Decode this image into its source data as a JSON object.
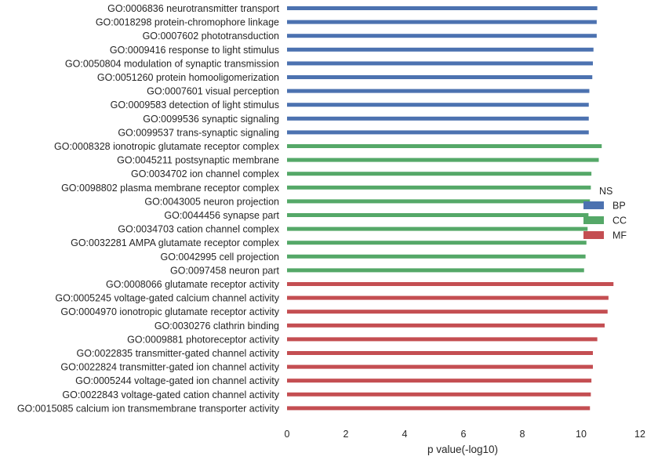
{
  "chart_data": {
    "type": "bar",
    "orientation": "horizontal",
    "xlabel": "p value(-log10)",
    "ylabel": "",
    "title": "",
    "xlim": [
      0,
      12
    ],
    "xticks": [
      0,
      2,
      4,
      6,
      8,
      10,
      12
    ],
    "grid": false,
    "legend": {
      "title": "NS",
      "placement": "right",
      "entries": [
        "BP",
        "CC",
        "MF"
      ]
    },
    "colors": {
      "BP": "#4c72b0",
      "CC": "#55a868",
      "MF": "#c44e52"
    },
    "bars": [
      {
        "label": "GO:0006836 neurotransmitter transport",
        "category": "BP",
        "value": 10.55
      },
      {
        "label": "GO:0018298 protein-chromophore linkage",
        "category": "BP",
        "value": 10.53
      },
      {
        "label": "GO:0007602 phototransduction",
        "category": "BP",
        "value": 10.53
      },
      {
        "label": "GO:0009416 response to light stimulus",
        "category": "BP",
        "value": 10.42
      },
      {
        "label": "GO:0050804 modulation of synaptic transmission",
        "category": "BP",
        "value": 10.4
      },
      {
        "label": "GO:0051260 protein homooligomerization",
        "category": "BP",
        "value": 10.38
      },
      {
        "label": "GO:0007601 visual perception",
        "category": "BP",
        "value": 10.28
      },
      {
        "label": "GO:0009583 detection of light stimulus",
        "category": "BP",
        "value": 10.26
      },
      {
        "label": "GO:0099536 synaptic signaling",
        "category": "BP",
        "value": 10.26
      },
      {
        "label": "GO:0099537 trans-synaptic signaling",
        "category": "BP",
        "value": 10.26
      },
      {
        "label": "GO:0008328 ionotropic glutamate receptor complex",
        "category": "CC",
        "value": 10.7
      },
      {
        "label": "GO:0045211 postsynaptic membrane",
        "category": "CC",
        "value": 10.6
      },
      {
        "label": "GO:0034702 ion channel complex",
        "category": "CC",
        "value": 10.35
      },
      {
        "label": "GO:0098802 plasma membrane receptor complex",
        "category": "CC",
        "value": 10.33
      },
      {
        "label": "GO:0043005 neuron projection",
        "category": "CC",
        "value": 10.3
      },
      {
        "label": "GO:0044456 synapse part",
        "category": "CC",
        "value": 10.25
      },
      {
        "label": "GO:0034703 cation channel complex",
        "category": "CC",
        "value": 10.22
      },
      {
        "label": "GO:0032281 AMPA glutamate receptor complex",
        "category": "CC",
        "value": 10.18
      },
      {
        "label": "GO:0042995 cell projection",
        "category": "CC",
        "value": 10.15
      },
      {
        "label": "GO:0097458 neuron part",
        "category": "CC",
        "value": 10.1
      },
      {
        "label": "GO:0008066 glutamate receptor activity",
        "category": "MF",
        "value": 11.1
      },
      {
        "label": "GO:0005245 voltage-gated calcium channel activity",
        "category": "MF",
        "value": 10.93
      },
      {
        "label": "GO:0004970 ionotropic glutamate receptor activity",
        "category": "MF",
        "value": 10.9
      },
      {
        "label": "GO:0030276 clathrin binding",
        "category": "MF",
        "value": 10.8
      },
      {
        "label": "GO:0009881 photoreceptor activity",
        "category": "MF",
        "value": 10.55
      },
      {
        "label": "GO:0022835 transmitter-gated channel activity",
        "category": "MF",
        "value": 10.4
      },
      {
        "label": "GO:0022824 transmitter-gated ion channel activity",
        "category": "MF",
        "value": 10.4
      },
      {
        "label": "GO:0005244 voltage-gated ion channel activity",
        "category": "MF",
        "value": 10.35
      },
      {
        "label": "GO:0022843 voltage-gated cation channel activity",
        "category": "MF",
        "value": 10.33
      },
      {
        "label": "GO:0015085 calcium ion transmembrane transporter activity",
        "category": "MF",
        "value": 10.3
      }
    ]
  }
}
